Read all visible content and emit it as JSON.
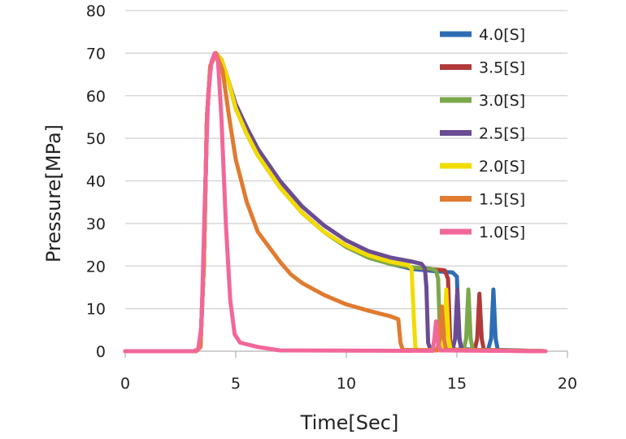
{
  "chart_data": {
    "type": "line",
    "title": "",
    "xlabel": "Time[Sec]",
    "ylabel": "Pressure[MPa]",
    "xlim": [
      0,
      20
    ],
    "ylim": [
      0,
      80
    ],
    "xticks": [
      0,
      5,
      10,
      15,
      20
    ],
    "yticks": [
      0,
      10,
      20,
      30,
      40,
      50,
      60,
      70,
      80
    ],
    "grid": "horizontal",
    "legend": "top-right",
    "series": [
      {
        "name": "4.0[S]",
        "color": "#2E6DB4",
        "points": [
          [
            0,
            0
          ],
          [
            3.2,
            0
          ],
          [
            3.4,
            1
          ],
          [
            3.55,
            20
          ],
          [
            3.7,
            55
          ],
          [
            3.85,
            67
          ],
          [
            4.1,
            70
          ],
          [
            4.35,
            68.5
          ],
          [
            4.7,
            63
          ],
          [
            5,
            57
          ],
          [
            5.5,
            51
          ],
          [
            6,
            46
          ],
          [
            7,
            38.5
          ],
          [
            8,
            32.5
          ],
          [
            9,
            28
          ],
          [
            10,
            24.5
          ],
          [
            11,
            22
          ],
          [
            12,
            20.5
          ],
          [
            13,
            19.3
          ],
          [
            14,
            18.8
          ],
          [
            14.8,
            18.5
          ],
          [
            15.0,
            17.5
          ],
          [
            15.1,
            3
          ],
          [
            15.2,
            0.5
          ],
          [
            16.4,
            0.2
          ],
          [
            16.55,
            3
          ],
          [
            16.65,
            14.5
          ],
          [
            16.75,
            3
          ],
          [
            16.85,
            0.3
          ],
          [
            19,
            0
          ]
        ]
      },
      {
        "name": "3.5[S]",
        "color": "#B23A3A",
        "points": [
          [
            0,
            0
          ],
          [
            3.2,
            0
          ],
          [
            3.4,
            1
          ],
          [
            3.55,
            20
          ],
          [
            3.7,
            55
          ],
          [
            3.85,
            67
          ],
          [
            4.1,
            70
          ],
          [
            4.35,
            68.5
          ],
          [
            4.7,
            63
          ],
          [
            5,
            57
          ],
          [
            5.5,
            51
          ],
          [
            6,
            46
          ],
          [
            7,
            38.5
          ],
          [
            8,
            32.5
          ],
          [
            9,
            28
          ],
          [
            10,
            24.5
          ],
          [
            11,
            22
          ],
          [
            12,
            20.5
          ],
          [
            13,
            19.6
          ],
          [
            14,
            19.2
          ],
          [
            14.45,
            19
          ],
          [
            14.6,
            17
          ],
          [
            14.7,
            2
          ],
          [
            14.8,
            0.4
          ],
          [
            15.8,
            0.2
          ],
          [
            15.92,
            3
          ],
          [
            16.02,
            13.5
          ],
          [
            16.12,
            3
          ],
          [
            16.22,
            0.3
          ],
          [
            19,
            0
          ]
        ]
      },
      {
        "name": "3.0[S]",
        "color": "#7BA84A",
        "points": [
          [
            0,
            0
          ],
          [
            3.2,
            0
          ],
          [
            3.4,
            1
          ],
          [
            3.55,
            20
          ],
          [
            3.7,
            55
          ],
          [
            3.85,
            67
          ],
          [
            4.1,
            70
          ],
          [
            4.35,
            68.5
          ],
          [
            4.7,
            63
          ],
          [
            5,
            57
          ],
          [
            5.5,
            51
          ],
          [
            6,
            46
          ],
          [
            7,
            38.5
          ],
          [
            8,
            32.5
          ],
          [
            9,
            28
          ],
          [
            10,
            24.5
          ],
          [
            11,
            22
          ],
          [
            12,
            20.5
          ],
          [
            13,
            19.7
          ],
          [
            13.8,
            19.4
          ],
          [
            14.05,
            19
          ],
          [
            14.15,
            17
          ],
          [
            14.25,
            2
          ],
          [
            14.35,
            0.4
          ],
          [
            15.3,
            0.2
          ],
          [
            15.42,
            3
          ],
          [
            15.52,
            14.5
          ],
          [
            15.62,
            3
          ],
          [
            15.72,
            0.3
          ],
          [
            19,
            0
          ]
        ]
      },
      {
        "name": "2.5[S]",
        "color": "#6A4C93",
        "points": [
          [
            0,
            0
          ],
          [
            3.2,
            0
          ],
          [
            3.4,
            1
          ],
          [
            3.55,
            20
          ],
          [
            3.7,
            55
          ],
          [
            3.85,
            67
          ],
          [
            4.1,
            70
          ],
          [
            4.35,
            68.5
          ],
          [
            4.7,
            63
          ],
          [
            5,
            58
          ],
          [
            5.5,
            52.5
          ],
          [
            6,
            47.5
          ],
          [
            7,
            40
          ],
          [
            8,
            34
          ],
          [
            9,
            29.5
          ],
          [
            10,
            26
          ],
          [
            11,
            23.5
          ],
          [
            12,
            22
          ],
          [
            13,
            21
          ],
          [
            13.4,
            20.5
          ],
          [
            13.55,
            19.5
          ],
          [
            13.62,
            15
          ],
          [
            13.7,
            2
          ],
          [
            13.8,
            0.4
          ],
          [
            14.8,
            0.2
          ],
          [
            14.92,
            3
          ],
          [
            15.02,
            14.5
          ],
          [
            15.12,
            3
          ],
          [
            15.22,
            0.3
          ],
          [
            19,
            0
          ]
        ]
      },
      {
        "name": "2.0[S]",
        "color": "#F2DC00",
        "points": [
          [
            0,
            0
          ],
          [
            3.2,
            0
          ],
          [
            3.4,
            1
          ],
          [
            3.55,
            20
          ],
          [
            3.7,
            55
          ],
          [
            3.85,
            67
          ],
          [
            4.1,
            70
          ],
          [
            4.35,
            68.5
          ],
          [
            4.7,
            63
          ],
          [
            5,
            57
          ],
          [
            5.5,
            51
          ],
          [
            6,
            46
          ],
          [
            7,
            38.5
          ],
          [
            8,
            32.5
          ],
          [
            9,
            28
          ],
          [
            10,
            24.8
          ],
          [
            11,
            22.5
          ],
          [
            12,
            21
          ],
          [
            12.8,
            20.2
          ],
          [
            12.95,
            19.5
          ],
          [
            13.05,
            8
          ],
          [
            13.12,
            1
          ],
          [
            13.2,
            0.3
          ],
          [
            14.3,
            0.2
          ],
          [
            14.42,
            3
          ],
          [
            14.52,
            14.5
          ],
          [
            14.62,
            3
          ],
          [
            14.72,
            0.3
          ],
          [
            19,
            0
          ]
        ]
      },
      {
        "name": "1.5[S]",
        "color": "#E07B30",
        "points": [
          [
            0,
            0
          ],
          [
            3.2,
            0
          ],
          [
            3.4,
            1
          ],
          [
            3.55,
            20
          ],
          [
            3.7,
            55
          ],
          [
            3.85,
            67
          ],
          [
            4.1,
            70
          ],
          [
            4.4,
            66
          ],
          [
            4.7,
            55
          ],
          [
            5,
            45
          ],
          [
            5.5,
            35
          ],
          [
            6,
            28
          ],
          [
            7,
            21
          ],
          [
            7.5,
            18
          ],
          [
            8,
            16
          ],
          [
            9,
            13.2
          ],
          [
            10,
            11
          ],
          [
            11,
            9.5
          ],
          [
            12,
            8.2
          ],
          [
            12.35,
            7.5
          ],
          [
            12.45,
            2
          ],
          [
            12.55,
            0.3
          ],
          [
            14.1,
            0.2
          ],
          [
            14.22,
            3
          ],
          [
            14.32,
            10.5
          ],
          [
            14.42,
            3
          ],
          [
            14.52,
            0.3
          ],
          [
            19,
            0
          ]
        ]
      },
      {
        "name": "1.0[S]",
        "color": "#F2679A",
        "points": [
          [
            0,
            0
          ],
          [
            3.1,
            0
          ],
          [
            3.3,
            0.5
          ],
          [
            3.45,
            6
          ],
          [
            3.6,
            35
          ],
          [
            3.75,
            60
          ],
          [
            3.9,
            68
          ],
          [
            4.05,
            70
          ],
          [
            4.2,
            68
          ],
          [
            4.35,
            55
          ],
          [
            4.55,
            30
          ],
          [
            4.75,
            12
          ],
          [
            4.95,
            4
          ],
          [
            5.2,
            2
          ],
          [
            6,
            1
          ],
          [
            7,
            0.2
          ],
          [
            13.9,
            0.1
          ],
          [
            13.98,
            3
          ],
          [
            14.06,
            7
          ],
          [
            14.14,
            2
          ],
          [
            14.25,
            0.2
          ],
          [
            19,
            0
          ]
        ]
      }
    ]
  }
}
